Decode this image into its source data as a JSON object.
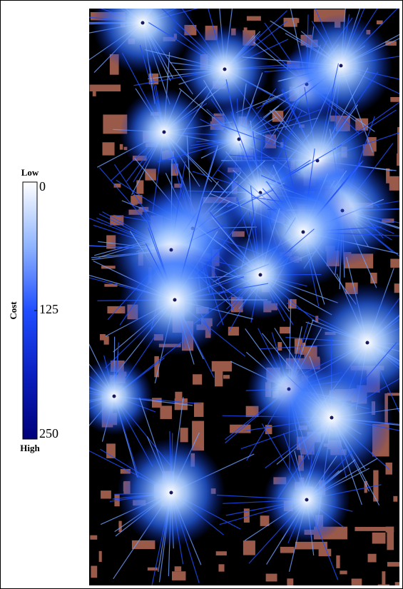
{
  "colorbar": {
    "label": "Cost",
    "low_label": "Low",
    "high_label": "High",
    "lim": [
      0,
      250
    ],
    "ticks": [
      0,
      125,
      250
    ]
  }
}
